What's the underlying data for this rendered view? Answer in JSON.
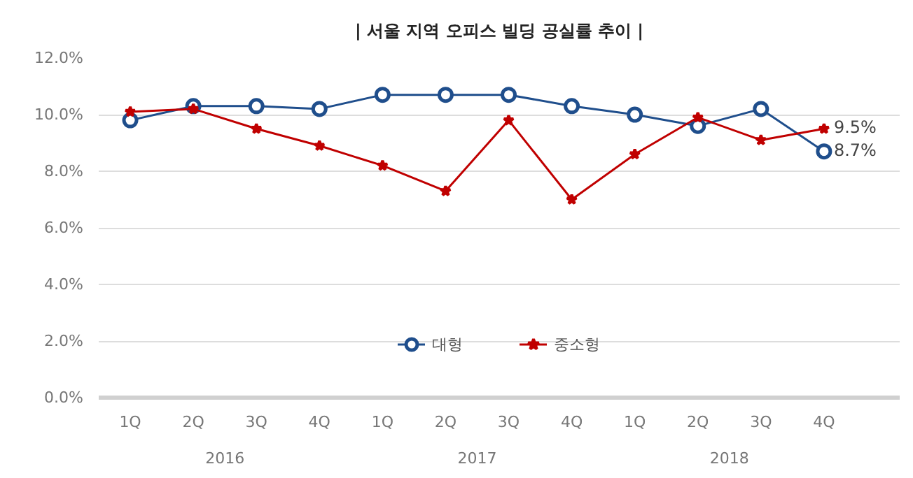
{
  "chart_data": {
    "type": "line",
    "title": "| 서울 지역 오피스 빌딩 공실률 추이 |",
    "categories": [
      "1Q",
      "2Q",
      "3Q",
      "4Q",
      "1Q",
      "2Q",
      "3Q",
      "4Q",
      "1Q",
      "2Q",
      "3Q",
      "4Q"
    ],
    "annotations": [
      "2016",
      "2017",
      "2018"
    ],
    "series": [
      {
        "name": "대형",
        "color": "#1f4e8c",
        "marker": "circle",
        "values": [
          9.8,
          10.3,
          10.3,
          10.2,
          10.7,
          10.7,
          10.7,
          10.3,
          10.0,
          9.6,
          10.2,
          8.7
        ],
        "value_labels": [
          null,
          null,
          null,
          null,
          null,
          null,
          null,
          null,
          null,
          null,
          null,
          "8.7%"
        ]
      },
      {
        "name": "중소형",
        "color": "#c00000",
        "marker": "star",
        "values": [
          10.1,
          10.2,
          9.5,
          8.9,
          8.2,
          7.3,
          9.8,
          7.0,
          8.6,
          9.9,
          9.1,
          9.5
        ],
        "value_labels": [
          null,
          null,
          null,
          null,
          null,
          null,
          null,
          null,
          null,
          null,
          null,
          "9.5%"
        ]
      }
    ],
    "ylim": [
      0,
      12
    ],
    "yticks": [
      {
        "value": 0,
        "label": "0.0%"
      },
      {
        "value": 2,
        "label": "2.0%"
      },
      {
        "value": 4,
        "label": "4.0%"
      },
      {
        "value": 6,
        "label": "6.0%"
      },
      {
        "value": 8,
        "label": "8.0%"
      },
      {
        "value": 10,
        "label": "10.0%"
      },
      {
        "value": 12,
        "label": "12.0%"
      }
    ],
    "grid": "y",
    "legend": "bottom",
    "line_style": "solid"
  }
}
